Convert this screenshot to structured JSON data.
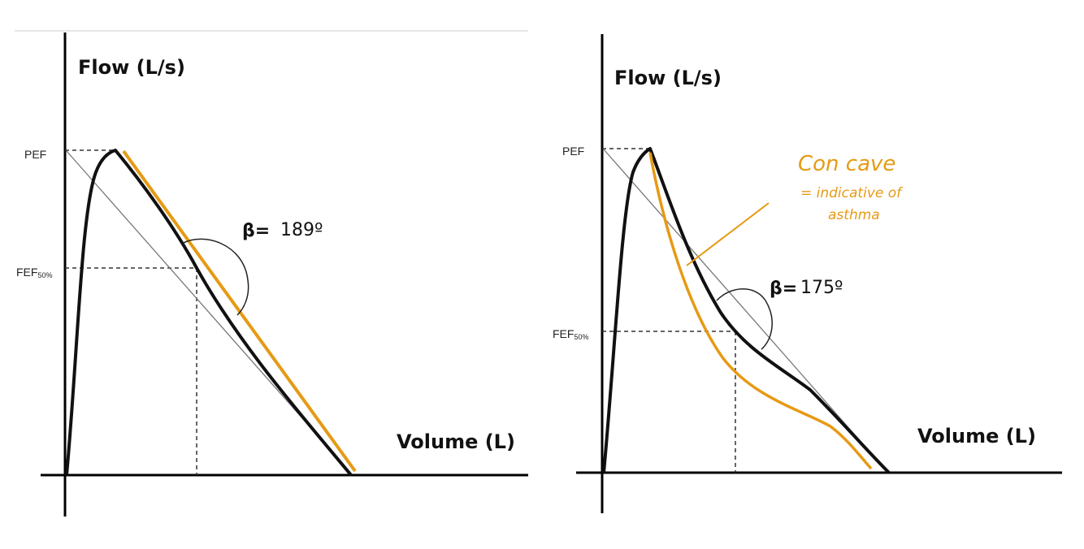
{
  "colors": {
    "curve": "#111111",
    "orange": "#e69a14",
    "guide": "#777777"
  },
  "panels": [
    {
      "y_axis_title": "Flow (L/s)",
      "x_axis_title": "Volume (L)",
      "pef_label": "PEF",
      "fef_label": "FEF",
      "fef_sub": "50%",
      "beta_label": "β=",
      "beta_value": "189º"
    },
    {
      "y_axis_title": "Flow (L/s)",
      "x_axis_title": "Volume (L)",
      "pef_label": "PEF",
      "fef_label": "FEF",
      "fef_sub": "50%",
      "beta_label": "β=",
      "beta_value": "175º",
      "note_line1": "Con cave",
      "note_line2": "= indicative of",
      "note_line3": "asthma"
    }
  ]
}
